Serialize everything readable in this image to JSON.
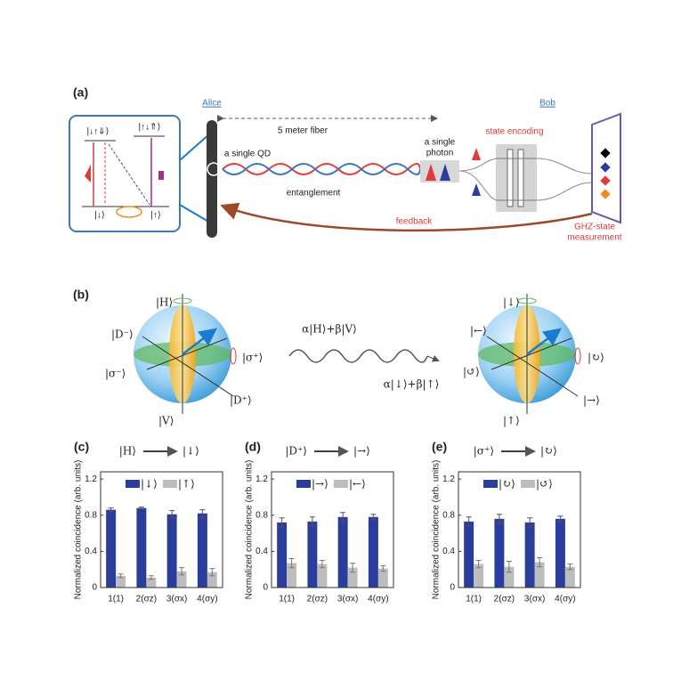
{
  "panel_a": {
    "label": "(a)",
    "alice": "Alice",
    "bob": "Bob",
    "fiber": "5 meter fiber",
    "qd": "a single QD",
    "photon": [
      "a single",
      "photon"
    ],
    "entanglement": "entanglement",
    "encoding": "state encoding",
    "feedback": "feedback",
    "ghz": [
      "GHZ-state",
      "measurement"
    ],
    "levels": [
      "|↓↑⇓⟩",
      "|↓⟩",
      "|↑↓⇑⟩",
      "|↑⟩"
    ]
  },
  "panel_b": {
    "label": "(b)",
    "left": {
      "top": "|H⟩",
      "bottom": "|V⟩",
      "upper_left": "|D⁻⟩",
      "lower_right": "|D⁺⟩",
      "right": "|σ⁺⟩",
      "left": "|σ⁻⟩"
    },
    "state_top": "α|H⟩+β|V⟩",
    "state_bottom": "α|↓⟩+β|↑⟩",
    "right": {
      "top": "|↓⟩",
      "bottom": "|↑⟩",
      "upper_left": "|←⟩",
      "lower_right": "|→⟩",
      "right": "|↻⟩",
      "left": "|↺⟩"
    }
  },
  "chart_data": [
    {
      "type": "bar",
      "label": "(c)",
      "title_from": "|H⟩",
      "title_to": "|↓⟩",
      "y_label": "Normalized coincidence (arb. units)",
      "categories": [
        "1(1)",
        "2(σz)",
        "3(σx)",
        "4(σy)"
      ],
      "series": [
        {
          "name": "|↓⟩",
          "color": "#2b3d9c",
          "values": [
            0.86,
            0.88,
            0.81,
            0.82
          ],
          "errors": [
            0.02,
            0.01,
            0.04,
            0.04
          ]
        },
        {
          "name": "|↑⟩",
          "color": "#bdbdbd",
          "values": [
            0.13,
            0.11,
            0.18,
            0.17
          ],
          "errors": [
            0.02,
            0.02,
            0.04,
            0.04
          ]
        }
      ],
      "ylim": [
        0,
        1.28
      ],
      "yticks": [
        0,
        0.4,
        0.8,
        1.2
      ]
    },
    {
      "type": "bar",
      "label": "(d)",
      "title_from": "|D⁺⟩",
      "title_to": "|→⟩",
      "y_label": "Normalized coincidence (arb. units)",
      "categories": [
        "1(1)",
        "2(σz)",
        "3(σx)",
        "4(σy)"
      ],
      "series": [
        {
          "name": "|→⟩",
          "color": "#2b3d9c",
          "values": [
            0.72,
            0.73,
            0.78,
            0.78
          ],
          "errors": [
            0.05,
            0.05,
            0.05,
            0.03
          ]
        },
        {
          "name": "|←⟩",
          "color": "#bdbdbd",
          "values": [
            0.27,
            0.26,
            0.22,
            0.21
          ],
          "errors": [
            0.05,
            0.04,
            0.05,
            0.03
          ]
        }
      ],
      "ylim": [
        0,
        1.28
      ],
      "yticks": [
        0,
        0.4,
        0.8,
        1.2
      ]
    },
    {
      "type": "bar",
      "label": "(e)",
      "title_from": "|σ⁺⟩",
      "title_to": "|↻⟩",
      "y_label": "Normalized coincidence (arb. units)",
      "categories": [
        "1(1)",
        "2(σz)",
        "3(σx)",
        "4(σy)"
      ],
      "series": [
        {
          "name": "|↻⟩",
          "color": "#2b3d9c",
          "values": [
            0.73,
            0.76,
            0.72,
            0.76
          ],
          "errors": [
            0.05,
            0.05,
            0.05,
            0.03
          ]
        },
        {
          "name": "|↺⟩",
          "color": "#bdbdbd",
          "values": [
            0.26,
            0.23,
            0.28,
            0.23
          ],
          "errors": [
            0.04,
            0.06,
            0.05,
            0.03
          ]
        }
      ],
      "ylim": [
        0,
        1.28
      ],
      "yticks": [
        0,
        0.4,
        0.8,
        1.2
      ]
    }
  ]
}
